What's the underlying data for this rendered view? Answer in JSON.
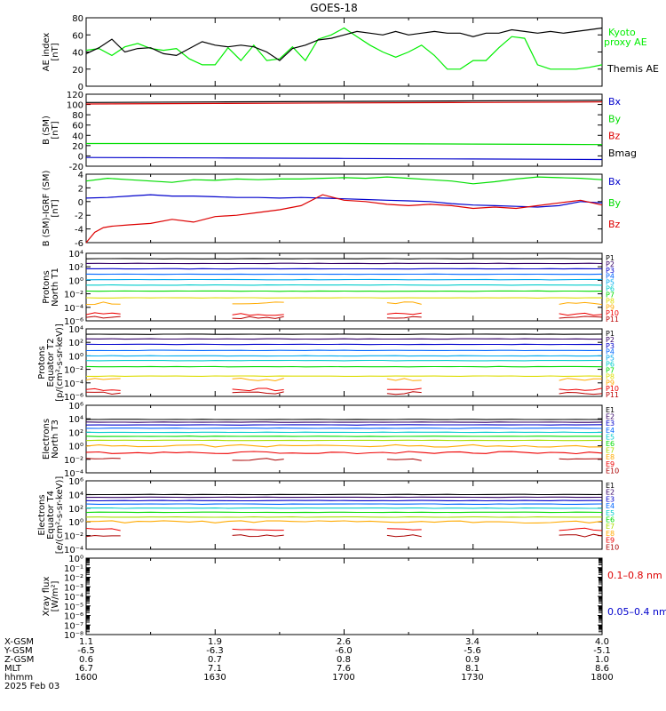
{
  "title": "GOES-18",
  "chart_data": [
    {
      "id": "ae",
      "type": "line",
      "ylabel": [
        "AE index",
        "[nT]"
      ],
      "ylim": [
        0,
        80
      ],
      "yticks": [
        "0",
        "20",
        "40",
        "60",
        "80"
      ],
      "series": [
        {
          "name": "Kyoto proxy AE",
          "color": "#00ee00",
          "x": [
            0,
            3,
            6,
            9,
            12,
            15,
            18,
            21,
            24,
            27,
            30,
            33,
            36,
            39,
            42,
            45,
            48,
            51,
            54,
            57,
            60,
            63,
            66,
            69,
            72,
            75,
            78,
            81,
            84,
            87,
            90,
            93,
            96,
            99,
            102,
            105,
            108,
            111,
            114,
            117,
            120
          ],
          "y": [
            42,
            44,
            36,
            46,
            50,
            44,
            42,
            44,
            32,
            25,
            25,
            45,
            30,
            48,
            30,
            32,
            46,
            30,
            55,
            60,
            68,
            58,
            48,
            40,
            34,
            40,
            48,
            36,
            20,
            20,
            30,
            30,
            45,
            58,
            56,
            25,
            20,
            20,
            20,
            22,
            25
          ]
        },
        {
          "name": "Themis AE",
          "color": "#000000",
          "x": [
            0,
            3,
            6,
            9,
            12,
            15,
            18,
            21,
            24,
            27,
            30,
            33,
            36,
            39,
            42,
            45,
            48,
            51,
            54,
            57,
            60,
            63,
            66,
            69,
            72,
            75,
            78,
            81,
            84,
            87,
            90,
            93,
            96,
            99,
            102,
            105,
            108,
            111,
            114,
            117,
            120
          ],
          "y": [
            38,
            45,
            55,
            40,
            44,
            45,
            38,
            36,
            44,
            52,
            48,
            46,
            48,
            46,
            40,
            30,
            44,
            48,
            54,
            56,
            60,
            64,
            62,
            60,
            64,
            60,
            62,
            64,
            62,
            62,
            58,
            62,
            62,
            66,
            64,
            62,
            64,
            62,
            64,
            66,
            68
          ]
        }
      ],
      "legend": [
        {
          "text": "Kyoto",
          "color": "#00ee00"
        },
        {
          "text": "proxy AE",
          "color": "#00ee00"
        },
        {
          "text": "Themis AE",
          "color": "#000000"
        }
      ]
    },
    {
      "id": "bsm",
      "type": "line",
      "ylabel": [
        "B (SM)",
        "[nT]"
      ],
      "ylim": [
        -20,
        120
      ],
      "yticks": [
        "-20",
        "0",
        "20",
        "40",
        "60",
        "80",
        "100",
        "120"
      ],
      "series": [
        {
          "name": "Bx",
          "color": "#0000cc",
          "x": [
            0,
            30,
            60,
            90,
            120
          ],
          "y": [
            -3,
            -4,
            -5,
            -6,
            -7
          ]
        },
        {
          "name": "By",
          "color": "#00dd00",
          "x": [
            0,
            30,
            60,
            90,
            120
          ],
          "y": [
            24,
            24,
            24,
            23,
            22
          ]
        },
        {
          "name": "Bz",
          "color": "#dd0000",
          "x": [
            0,
            30,
            60,
            90,
            120
          ],
          "y": [
            101,
            102,
            103,
            104,
            105
          ]
        },
        {
          "name": "Bmag",
          "color": "#000000",
          "x": [
            0,
            30,
            60,
            90,
            120
          ],
          "y": [
            104,
            105,
            106,
            107,
            108
          ]
        }
      ],
      "legend": [
        {
          "text": "Bx",
          "color": "#0000cc"
        },
        {
          "text": "By",
          "color": "#00dd00"
        },
        {
          "text": "Bz",
          "color": "#dd0000"
        },
        {
          "text": "Bmag",
          "color": "#000000"
        }
      ]
    },
    {
      "id": "bdiff",
      "type": "line",
      "ylabel": [
        "B (SM)-IGRF (SM)",
        "[nT]"
      ],
      "ylim": [
        -6,
        4
      ],
      "yticks": [
        "-6",
        "-4",
        "-2",
        "0",
        "2",
        "4"
      ],
      "series": [
        {
          "name": "Bx",
          "color": "#0000cc",
          "x": [
            0,
            5,
            10,
            15,
            20,
            25,
            30,
            35,
            40,
            45,
            50,
            55,
            60,
            65,
            70,
            75,
            80,
            85,
            90,
            95,
            100,
            105,
            110,
            115,
            120
          ],
          "y": [
            0.5,
            0.6,
            0.8,
            1,
            0.8,
            0.8,
            0.7,
            0.6,
            0.6,
            0.5,
            0.6,
            0.5,
            0.4,
            0.3,
            0.2,
            0.1,
            0,
            -0.3,
            -0.5,
            -0.6,
            -0.7,
            -0.8,
            -0.6,
            0,
            -0.2
          ]
        },
        {
          "name": "By",
          "color": "#00dd00",
          "x": [
            0,
            5,
            10,
            15,
            20,
            25,
            30,
            35,
            40,
            45,
            50,
            55,
            60,
            65,
            70,
            75,
            80,
            85,
            90,
            95,
            100,
            105,
            110,
            115,
            120
          ],
          "y": [
            3,
            3.4,
            3.2,
            3,
            2.8,
            3.2,
            3.1,
            3.3,
            3.2,
            3.3,
            3.3,
            3.4,
            3.5,
            3.4,
            3.6,
            3.4,
            3.2,
            3,
            2.6,
            2.9,
            3.3,
            3.6,
            3.5,
            3.4,
            3.2
          ]
        },
        {
          "name": "Bz",
          "color": "#dd0000",
          "x": [
            0,
            2,
            4,
            6,
            10,
            15,
            20,
            25,
            30,
            35,
            40,
            45,
            50,
            55,
            60,
            65,
            70,
            75,
            80,
            85,
            90,
            95,
            100,
            105,
            110,
            115,
            120
          ],
          "y": [
            -6,
            -4.5,
            -3.8,
            -3.6,
            -3.4,
            -3.2,
            -2.6,
            -3,
            -2.2,
            -2,
            -1.6,
            -1.2,
            -0.6,
            1,
            0.2,
            0,
            -0.4,
            -0.6,
            -0.4,
            -0.6,
            -1,
            -0.8,
            -1,
            -0.6,
            -0.2,
            0.2,
            -0.5
          ]
        }
      ],
      "legend": [
        {
          "text": "Bx",
          "color": "#0000cc"
        },
        {
          "text": "By",
          "color": "#00dd00"
        },
        {
          "text": "Bz",
          "color": "#dd0000"
        }
      ]
    },
    {
      "id": "pnorth",
      "type": "line",
      "ylabel": [
        "Protons",
        "North T1"
      ],
      "log": true,
      "ylim_exp": [
        -6,
        4
      ],
      "yticks": [
        "10⁻⁶",
        "10⁻⁴",
        "10⁻²",
        "10⁰",
        "10²",
        "10⁴"
      ],
      "channels": [
        {
          "name": "P1",
          "color": "#000000",
          "y": 3.2
        },
        {
          "name": "P2",
          "color": "#330066",
          "y": 2.5
        },
        {
          "name": "P3",
          "color": "#0000cc",
          "y": 1.7
        },
        {
          "name": "P4",
          "color": "#0066ff",
          "y": 0.9
        },
        {
          "name": "P5",
          "color": "#00aaee",
          "y": 0.1
        },
        {
          "name": "P6",
          "color": "#00cccc",
          "y": -0.7
        },
        {
          "name": "P7",
          "color": "#00dd00",
          "y": -1.6
        },
        {
          "name": "P8",
          "color": "#dddd00",
          "y": -2.6
        },
        {
          "name": "P9",
          "color": "#ffaa00",
          "y": -3.4
        },
        {
          "name": "P10",
          "color": "#ee0000",
          "y": -5.0
        },
        {
          "name": "P11",
          "color": "#bb0000",
          "y": -5.5
        }
      ]
    },
    {
      "id": "peq",
      "type": "line",
      "ylabel": [
        "Protons",
        "Equator T2",
        "[p/(cm²-s-sr-keV)]"
      ],
      "log": true,
      "ylim_exp": [
        -6,
        4
      ],
      "yticks": [
        "10⁻⁶",
        "10⁻⁴",
        "10⁻²",
        "10⁰",
        "10²",
        "10⁴"
      ],
      "channels": [
        {
          "name": "P1",
          "color": "#000000",
          "y": 3.2
        },
        {
          "name": "P2",
          "color": "#330066",
          "y": 2.5
        },
        {
          "name": "P3",
          "color": "#0000cc",
          "y": 1.7
        },
        {
          "name": "P4",
          "color": "#0066ff",
          "y": 0.8
        },
        {
          "name": "P5",
          "color": "#00aaee",
          "y": 0.0
        },
        {
          "name": "P6",
          "color": "#00cccc",
          "y": -0.7
        },
        {
          "name": "P7",
          "color": "#00dd00",
          "y": -1.6
        },
        {
          "name": "P8",
          "color": "#dddd00",
          "y": -3.0
        },
        {
          "name": "P9",
          "color": "#ffaa00",
          "y": -3.5
        },
        {
          "name": "P10",
          "color": "#ee0000",
          "y": -5.0
        },
        {
          "name": "P11",
          "color": "#bb0000",
          "y": -5.5
        }
      ]
    },
    {
      "id": "enorth",
      "type": "line",
      "ylabel": [
        "Electrons",
        "North T3"
      ],
      "log": true,
      "ylim_exp": [
        -4,
        6
      ],
      "yticks": [
        "10⁻⁴",
        "10⁻²",
        "10⁰",
        "10²",
        "10⁴",
        "10⁶"
      ],
      "channels": [
        {
          "name": "E1",
          "color": "#000000",
          "y": 3.9
        },
        {
          "name": "E2",
          "color": "#330066",
          "y": 3.5
        },
        {
          "name": "E3",
          "color": "#0000cc",
          "y": 3.1
        },
        {
          "name": "E4",
          "color": "#0066ff",
          "y": 2.6
        },
        {
          "name": "E5",
          "color": "#00cccc",
          "y": 2.0
        },
        {
          "name": "E6",
          "color": "#00dd00",
          "y": 1.4
        },
        {
          "name": "E7",
          "color": "#aadd00",
          "y": 0.8
        },
        {
          "name": "E8",
          "color": "#ffaa00",
          "y": 0.0
        },
        {
          "name": "E9",
          "color": "#ee0000",
          "y": -1.0
        },
        {
          "name": "E10",
          "color": "#aa0000",
          "y": -2.0
        }
      ]
    },
    {
      "id": "eeq",
      "type": "line",
      "ylabel": [
        "Electrons",
        "Equator T4",
        "[e/(cm²-s-sr-keV)]"
      ],
      "log": true,
      "ylim_exp": [
        -4,
        6
      ],
      "yticks": [
        "10⁻⁴",
        "10⁻²",
        "10⁰",
        "10²",
        "10⁴",
        "10⁶"
      ],
      "channels": [
        {
          "name": "E1",
          "color": "#000000",
          "y": 4.0
        },
        {
          "name": "E2",
          "color": "#330066",
          "y": 3.6
        },
        {
          "name": "E3",
          "color": "#0000cc",
          "y": 3.1
        },
        {
          "name": "E4",
          "color": "#0066ff",
          "y": 2.6
        },
        {
          "name": "E5",
          "color": "#00cccc",
          "y": 2.0
        },
        {
          "name": "E6",
          "color": "#00dd00",
          "y": 1.4
        },
        {
          "name": "E7",
          "color": "#aadd00",
          "y": 0.7
        },
        {
          "name": "E8",
          "color": "#ffaa00",
          "y": 0.0
        },
        {
          "name": "E9",
          "color": "#ee0000",
          "y": -1.1
        },
        {
          "name": "E10",
          "color": "#aa0000",
          "y": -2.0
        }
      ]
    },
    {
      "id": "xray",
      "type": "line",
      "ylabel": [
        "Xray flux",
        "[W/m²]"
      ],
      "log": true,
      "ylim_exp": [
        -8,
        0
      ],
      "yticks": [
        "10⁻⁸",
        "10⁻⁷",
        "10⁻⁶",
        "10⁻⁵",
        "10⁻⁴",
        "10⁻³",
        "10⁻²",
        "10⁻¹",
        "10⁰"
      ],
      "legend": [
        {
          "text": "0.1–0.8 nm",
          "color": "#dd0000"
        },
        {
          "text": "0.05–0.4 nm",
          "color": "#0000cc"
        }
      ]
    }
  ],
  "xaxis": {
    "row_labels": [
      "X-GSM",
      "Y-GSM",
      "Z-GSM",
      "MLT",
      "hhmm",
      "2025 Feb 03"
    ],
    "columns": [
      [
        "1.1",
        "-6.5",
        "0.6",
        "6.7",
        "1600"
      ],
      [
        "1.9",
        "-6.3",
        "0.7",
        "7.1",
        "1630"
      ],
      [
        "2.6",
        "-6.0",
        "0.8",
        "7.6",
        "1700"
      ],
      [
        "3.4",
        "-5.6",
        "0.9",
        "8.1",
        "1730"
      ],
      [
        "4.0",
        "-5.1",
        "1.0",
        "8.6",
        "1800"
      ]
    ]
  }
}
